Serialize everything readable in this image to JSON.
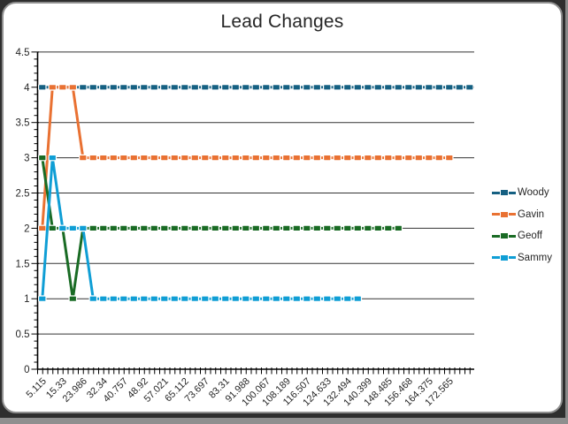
{
  "chart_data": {
    "type": "line",
    "title": "Lead Changes",
    "xlabel": "",
    "ylabel": "",
    "ylim": [
      0,
      4.5
    ],
    "y_major_step": 0.5,
    "y_minor_step": 0.1,
    "y_tick_labels": [
      "0",
      "0.5",
      "1",
      "1.5",
      "2",
      "2.5",
      "3",
      "3.5",
      "4",
      "4.5"
    ],
    "x_tick_labels": [
      "5.115",
      "15.33",
      "23.986",
      "32.34",
      "40.757",
      "48.92",
      "57.021",
      "65.112",
      "73.697",
      "83.31",
      "91.988",
      "100.067",
      "108.189",
      "116.507",
      "124.633",
      "132.494",
      "140.399",
      "148.485",
      "156.468",
      "164.375",
      "172.565"
    ],
    "x_label_interval": 2,
    "total_categories": 43,
    "x_label_rotation_deg": 45,
    "grid": "horizontal-major",
    "legend_position": "right",
    "marker": "square",
    "series": [
      {
        "name": "Woody",
        "color": "#156082",
        "values": [
          4,
          4,
          4,
          4,
          4,
          4,
          4,
          4,
          4,
          4,
          4,
          4,
          4,
          4,
          4,
          4,
          4,
          4,
          4,
          4,
          4,
          4,
          4,
          4,
          4,
          4,
          4,
          4,
          4,
          4,
          4,
          4,
          4,
          4,
          4,
          4,
          4,
          4,
          4,
          4,
          4,
          4,
          4
        ]
      },
      {
        "name": "Gavin",
        "color": "#E97132",
        "values": [
          2,
          4,
          4,
          4,
          3,
          3,
          3,
          3,
          3,
          3,
          3,
          3,
          3,
          3,
          3,
          3,
          3,
          3,
          3,
          3,
          3,
          3,
          3,
          3,
          3,
          3,
          3,
          3,
          3,
          3,
          3,
          3,
          3,
          3,
          3,
          3,
          3,
          3,
          3,
          3,
          3
        ]
      },
      {
        "name": "Geoff",
        "color": "#196B24",
        "values": [
          3,
          2,
          2,
          1,
          2,
          2,
          2,
          2,
          2,
          2,
          2,
          2,
          2,
          2,
          2,
          2,
          2,
          2,
          2,
          2,
          2,
          2,
          2,
          2,
          2,
          2,
          2,
          2,
          2,
          2,
          2,
          2,
          2,
          2,
          2,
          2
        ]
      },
      {
        "name": "Sammy",
        "color": "#0F9ED5",
        "values": [
          1,
          3,
          2,
          2,
          2,
          1,
          1,
          1,
          1,
          1,
          1,
          1,
          1,
          1,
          1,
          1,
          1,
          1,
          1,
          1,
          1,
          1,
          1,
          1,
          1,
          1,
          1,
          1,
          1,
          1,
          1,
          1
        ]
      }
    ]
  }
}
